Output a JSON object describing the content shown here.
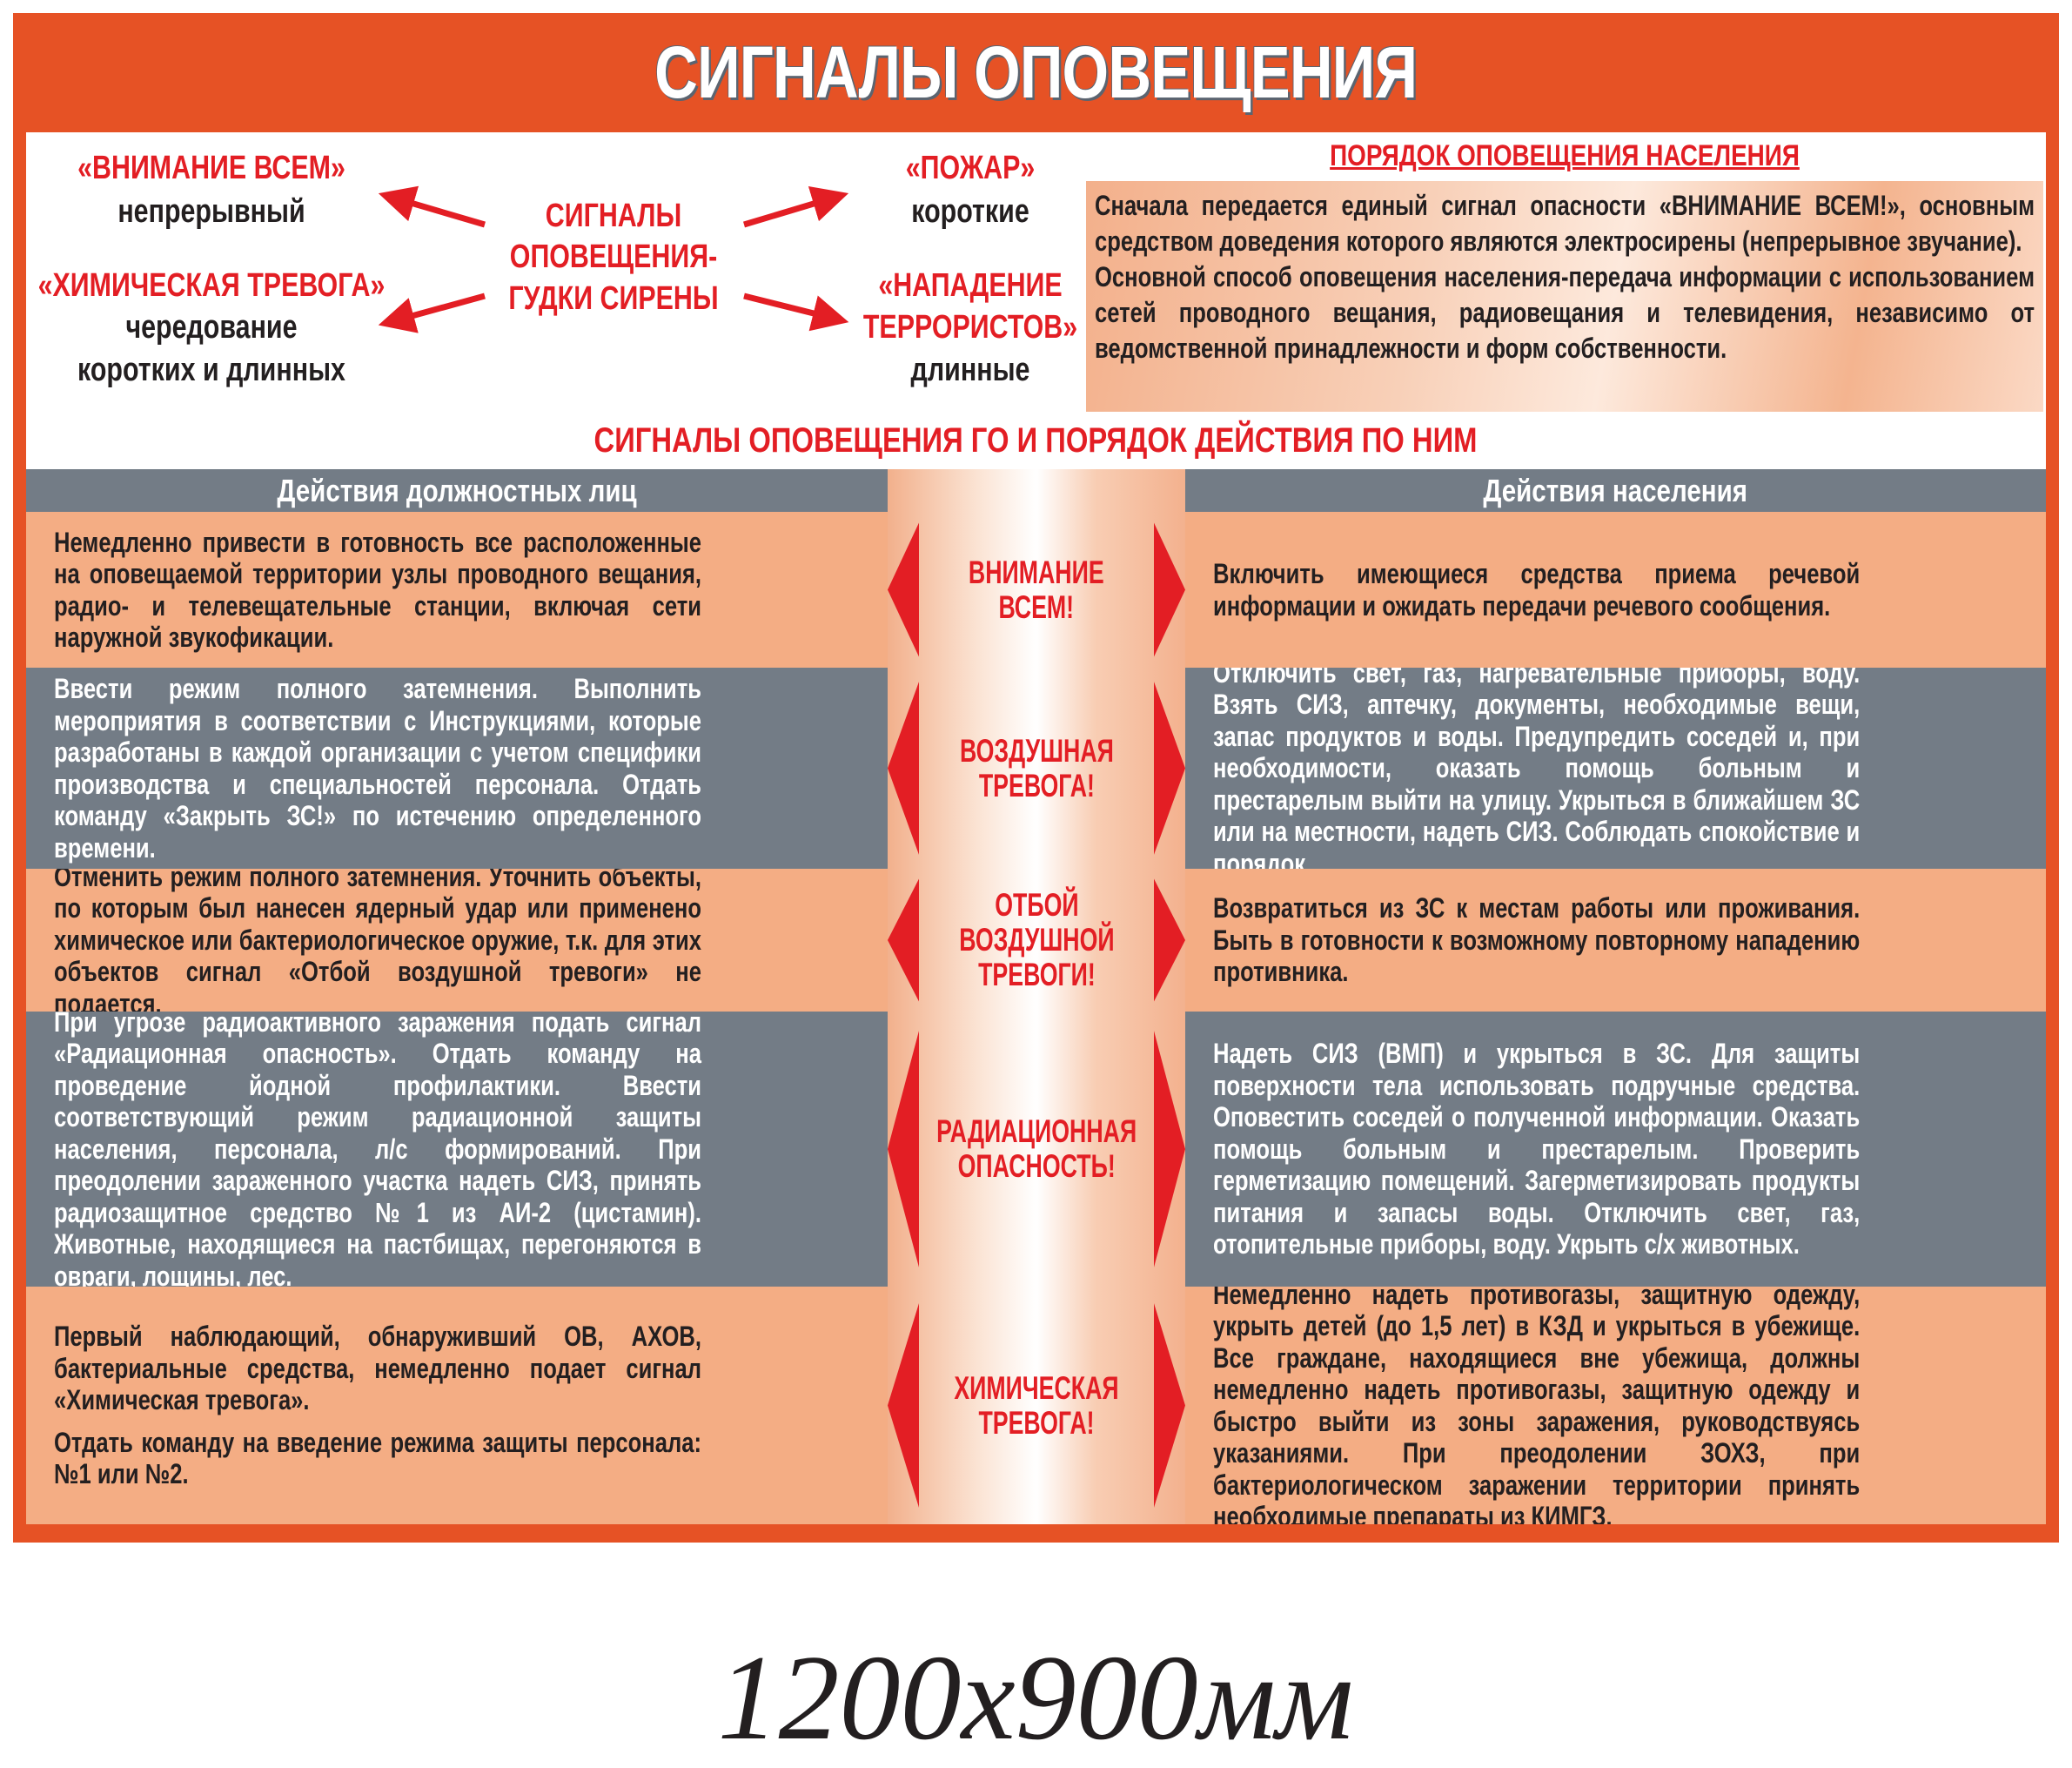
{
  "title": "СИГНАЛЫ ОПОВЕЩЕНИЯ",
  "diagram": {
    "center": [
      "СИГНАЛЫ",
      "ОПОВЕЩЕНИЯ-",
      "ГУДКИ СИРЕНЫ"
    ],
    "signals": [
      {
        "name": "«ВНИМАНИЕ ВСЕМ»",
        "desc": [
          "непрерывный"
        ]
      },
      {
        "name": "«ХИМИЧЕСКАЯ ТРЕВОГА»",
        "desc": [
          "чередование",
          "коротких и длинных"
        ]
      },
      {
        "name": "«ПОЖАР»",
        "desc": [
          "короткие"
        ]
      },
      {
        "name": [
          "«НАПАДЕНИЕ",
          "ТЕРРОРИСТОВ»"
        ],
        "desc": [
          "длинные"
        ]
      }
    ]
  },
  "order": {
    "title": "ПОРЯДОК ОПОВЕЩЕНИЯ НАСЕЛЕНИЯ",
    "paragraphs": [
      "Сначала передается единый сигнал опасности «ВНИМАНИЕ ВСЕМ!», основным средством доведения которого являются электросирены (непрерывное звучание).",
      "Основной способ оповещения населения-передача информации с использованием сетей проводного вещания, радиовещания и телевидения, независимо от ведомственной принадлежности и форм собственности."
    ]
  },
  "section_heading": "СИГНАЛЫ ОПОВЕЩЕНИЯ ГО И ПОРЯДОК ДЕЙСТВИЯ ПО НИМ",
  "table": {
    "headers": {
      "officials": "Действия должностных лиц",
      "population": "Действия населения"
    },
    "rows": [
      {
        "signal": [
          "ВНИМАНИЕ",
          "ВСЕМ!"
        ],
        "officials": [
          "Немедленно привести в готовность все расположенные на оповещаемой территории узлы проводного вещания, радио- и телевещательные станции, включая сети наружной звукофикации."
        ],
        "population": [
          "Включить имеющиеся средства приема речевой информации и ожидать передачи речевого сообщения."
        ]
      },
      {
        "signal": [
          "ВОЗДУШНАЯ",
          "ТРЕВОГА!"
        ],
        "officials": [
          "Ввести режим полного затемнения. Выполнить мероприятия в соответствии с Инструкциями, которые разработаны в каждой организации с учетом специфики производства и специальностей персонала. Отдать команду «Закрыть ЗС!» по истечению определенного времени."
        ],
        "population": [
          "Отключить свет, газ, нагревательные приборы, воду. Взять СИЗ, аптечку, документы, необходимые вещи, запас продуктов и воды. Предупредить соседей и, при необходимости, оказать помощь больным и престарелым выйти на улицу. Укрыться в ближайшем ЗС или на местности, надеть СИЗ. Соблюдать спокойствие и порядок."
        ]
      },
      {
        "signal": [
          "ОТБОЙ",
          "ВОЗДУШНОЙ",
          "ТРЕВОГИ!"
        ],
        "officials": [
          "Отменить режим полного затемнения. Уточнить объекты, по которым был нанесен ядерный удар или применено химическое или бактериологическое оружие, т.к. для этих объектов сигнал «Отбой воздушной тревоги» не подается."
        ],
        "population": [
          "Возвратиться из ЗС к местам работы или проживания. Быть в готовности к возможному повторному нападению противника."
        ]
      },
      {
        "signal": [
          "РАДИАЦИОННАЯ",
          "ОПАСНОСТЬ!"
        ],
        "officials": [
          "При угрозе радиоактивного заражения подать сигнал «Радиационная опасность». Отдать команду на проведение йодной профилактики. Ввести соответствующий режим радиационной защиты населения, персонала, л/с формирований. При преодолении зараженного участка надеть СИЗ, принять радиозащитное средство №1 из АИ-2 (цистамин). Животные, находящиеся на пастбищах, перегоняются в овраги, лощины, лес."
        ],
        "population": [
          "Надеть СИЗ (ВМП) и укрыться в ЗС. Для защиты поверхности тела использовать подручные средства. Оповестить соседей о полученной информации. Оказать помощь больным и престарелым. Проверить герметизацию помещений. Загерметизировать продукты питания и запасы воды. Отключить свет, газ, отопительные приборы, воду. Укрыть с/х животных."
        ]
      },
      {
        "signal": [
          "ХИМИЧЕСКАЯ",
          "ТРЕВОГА!"
        ],
        "officials": [
          "Первый наблюдающий, обнаруживший ОВ, АХОВ, бактериальные средства, немедленно подает сигнал «Химическая тревога».",
          "Отдать команду на введение режима защиты персонала: №1 или №2."
        ],
        "population": [
          "Немедленно надеть противогазы, защитную одежду, укрыть детей (до 1,5 лет) в КЗД и укрыться в убежище. Все граждане, находящиеся вне убежища, должны немедленно надеть противогазы, защитную одежду и быстро выйти из зоны заражения, руководствуясь указаниями. При преодолении ЗОХЗ, при бактериологическом заражении территории принять необходимые препараты из КИМГЗ."
        ]
      }
    ]
  },
  "size_caption": "1200x900мм",
  "colors": {
    "frame": "#e65225",
    "signal_red": "#e31e24",
    "row_salmon": "#f4ad84",
    "row_gray": "#737c86"
  }
}
